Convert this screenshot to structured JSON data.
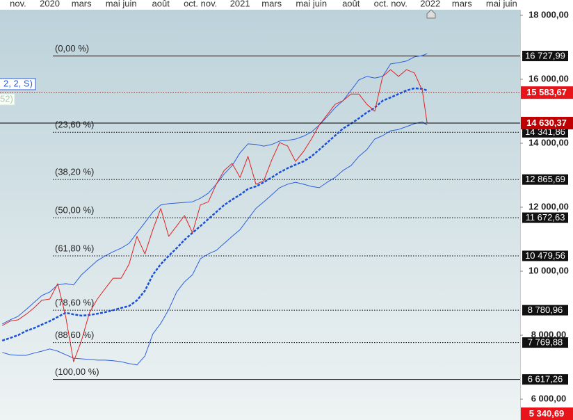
{
  "chart_data": {
    "type": "line",
    "xlim": [
      -1.14,
      31.67
    ],
    "ylim": [
      5348,
      18174
    ],
    "xticks": [
      {
        "value": 0,
        "label": "nov."
      },
      {
        "value": 2,
        "label": "2020"
      },
      {
        "value": 4,
        "label": "mars"
      },
      {
        "value": 6.5,
        "label": "mai juin"
      },
      {
        "value": 9,
        "label": "août"
      },
      {
        "value": 11.5,
        "label": "oct. nov."
      },
      {
        "value": 14,
        "label": "2021"
      },
      {
        "value": 16,
        "label": "mars"
      },
      {
        "value": 18.5,
        "label": "mai juin"
      },
      {
        "value": 21,
        "label": "août"
      },
      {
        "value": 23.5,
        "label": "oct. nov."
      },
      {
        "value": 26,
        "label": "2022"
      },
      {
        "value": 28,
        "label": "mars"
      },
      {
        "value": 30.5,
        "label": "mai juin"
      }
    ],
    "yticks": [
      {
        "value": 6000,
        "label": "6 000,00"
      },
      {
        "value": 8000,
        "label": "8 000,00"
      },
      {
        "value": 10000,
        "label": "10 000,00"
      },
      {
        "value": 12000,
        "label": "12 000,00"
      },
      {
        "value": 14000,
        "label": "14 000,00"
      },
      {
        "value": 16000,
        "label": "16 000,00"
      },
      {
        "value": 18000,
        "label": "18 000,00"
      }
    ],
    "x": [
      -1,
      -0.5,
      0,
      0.5,
      1,
      1.5,
      2,
      2.5,
      3,
      3.5,
      4,
      4.5,
      5,
      5.5,
      6,
      6.5,
      7,
      7.5,
      8,
      8.5,
      9,
      9.5,
      10,
      10.5,
      11,
      11.5,
      12,
      12.5,
      13,
      13.5,
      14,
      14.5,
      15,
      15.5,
      16,
      16.5,
      17,
      17.5,
      18,
      18.5,
      19,
      19.5,
      20,
      20.5,
      21,
      21.5,
      22,
      22.5,
      23,
      23.5,
      24,
      24.5,
      25,
      25.5,
      25.8
    ],
    "series": [
      {
        "color": "#2a5fe0",
        "style": "solid",
        "width": 1,
        "values": [
          7460,
          7390,
          7370,
          7370,
          7440,
          7500,
          7570,
          7500,
          7390,
          7280,
          7260,
          7240,
          7220,
          7220,
          7200,
          7170,
          7110,
          7070,
          7350,
          8040,
          8370,
          8800,
          9350,
          9670,
          9890,
          10390,
          10540,
          10650,
          10870,
          11090,
          11300,
          11630,
          11960,
          12170,
          12390,
          12610,
          12720,
          12780,
          12720,
          12650,
          12610,
          12780,
          12930,
          13150,
          13300,
          13590,
          13800,
          14130,
          14240,
          14390,
          14430,
          14520,
          14610,
          14670,
          14570
        ]
      },
      {
        "color": "#2a5fe0",
        "style": "solid",
        "width": 1,
        "values": [
          8350,
          8480,
          8590,
          8800,
          9020,
          9240,
          9350,
          9570,
          9610,
          9570,
          9890,
          10110,
          10330,
          10480,
          10610,
          10720,
          10870,
          11200,
          11520,
          11850,
          12070,
          12110,
          12130,
          12150,
          12170,
          12280,
          12440,
          12720,
          13040,
          13300,
          13700,
          13980,
          13960,
          13910,
          13960,
          14070,
          14090,
          14130,
          14220,
          14350,
          14570,
          14830,
          15110,
          15330,
          15650,
          15980,
          16090,
          16040,
          16090,
          16480,
          16520,
          16570,
          16700,
          16740,
          16800
        ]
      },
      {
        "color": "#1a4fd8",
        "style": "dashed",
        "width": 2.5,
        "values": [
          7830,
          7910,
          8000,
          8130,
          8220,
          8330,
          8440,
          8570,
          8700,
          8650,
          8610,
          8630,
          8670,
          8720,
          8780,
          8850,
          8910,
          9090,
          9390,
          9890,
          10220,
          10480,
          10720,
          10980,
          11200,
          11410,
          11630,
          11850,
          12070,
          12240,
          12390,
          12570,
          12650,
          12780,
          12930,
          13090,
          13220,
          13330,
          13430,
          13590,
          13800,
          14020,
          14240,
          14460,
          14610,
          14780,
          14960,
          15110,
          15330,
          15430,
          15540,
          15650,
          15720,
          15700,
          15650
        ]
      },
      {
        "color": "#e02020",
        "style": "solid",
        "width": 1,
        "values": [
          8300,
          8440,
          8480,
          8650,
          8850,
          9090,
          9130,
          9610,
          8590,
          7170,
          7830,
          8700,
          9130,
          9460,
          9780,
          9780,
          10220,
          11090,
          10540,
          11300,
          11960,
          11090,
          11410,
          11740,
          11200,
          12070,
          12170,
          12720,
          13150,
          13370,
          12930,
          13590,
          12720,
          12830,
          13480,
          14020,
          13910,
          13430,
          13740,
          14130,
          14570,
          14890,
          15220,
          15330,
          15540,
          15540,
          15220,
          15000,
          16090,
          16300,
          16090,
          16300,
          16200,
          15650,
          14630.37
        ]
      }
    ],
    "fib_levels": [
      {
        "label": "(0,00 %)",
        "value": 16727.99,
        "value_label": "16 727,99",
        "style": "solid"
      },
      {
        "label": "(23,60 %)",
        "value": 14341.86,
        "value_label": "14 341,86",
        "style": "dotted"
      },
      {
        "label": "(38,20 %)",
        "value": 12865.69,
        "value_label": "12 865,69",
        "style": "dotted"
      },
      {
        "label": "(50,00 %)",
        "value": 11672.63,
        "value_label": "11 672,63",
        "style": "dotted"
      },
      {
        "label": "(61,80 %)",
        "value": 10479.56,
        "value_label": "10 479,56",
        "style": "dotted"
      },
      {
        "label": "(78,60 %)",
        "value": 8780.96,
        "value_label": "8 780,96",
        "style": "dotted"
      },
      {
        "label": "(88,60 %)",
        "value": 7769.88,
        "value_label": "7 769,88",
        "style": "dotted"
      },
      {
        "label": "(100,00 %)",
        "value": 6617.26,
        "value_label": "6 617,26",
        "style": "solid"
      }
    ],
    "level_lines": [
      {
        "value": 15583.67,
        "value_label": "15 583,67",
        "line_color": "#e00000",
        "box_color": "#e8141a",
        "style": "dotted"
      },
      {
        "value": 14630.37,
        "value_label": "14 630,37",
        "line_color": "#000000",
        "box_color": "#c00000",
        "style": "solid"
      },
      {
        "value": 5340.69,
        "value_label": "5 340,69",
        "line_color": "#e00000",
        "box_color": "#e8141a",
        "style": "none"
      }
    ],
    "legend_fragments": [
      "2, 2, S)",
      "52)"
    ]
  }
}
